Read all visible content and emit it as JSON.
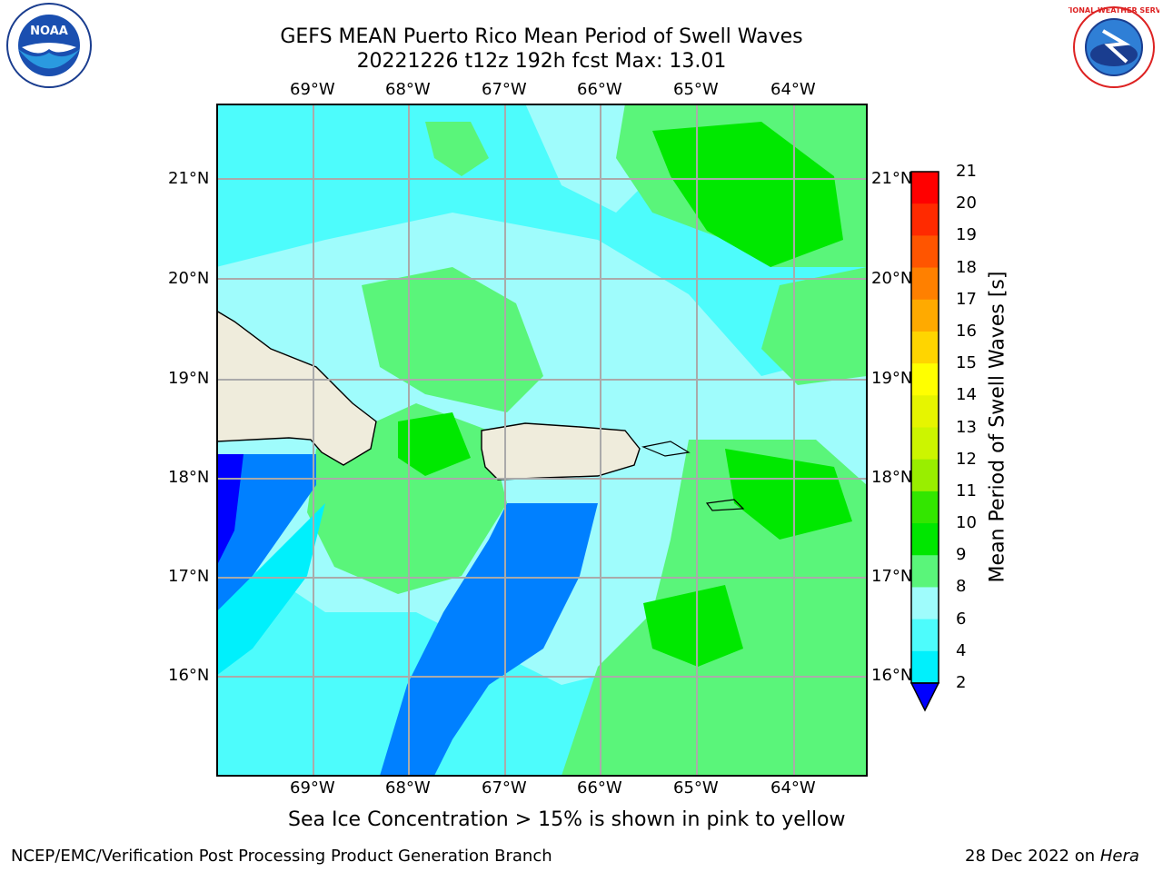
{
  "header": {
    "title": "GEFS MEAN Puerto Rico Mean Period of Swell Waves",
    "subtitle": "20221226 t12z 192h fcst   Max: 13.01"
  },
  "logos": {
    "left": "NOAA",
    "right": "NATIONAL WEATHER SERVICE"
  },
  "map": {
    "lon_labels": [
      "69°W",
      "68°W",
      "67°W",
      "66°W",
      "65°W",
      "64°W"
    ],
    "lat_labels": [
      "21°N",
      "20°N",
      "19°N",
      "18°N",
      "17°N",
      "16°N"
    ],
    "ocean_colors": {
      "cyan_light": "#9ffcfc",
      "cyan_mid": "#4dfcfc",
      "cyan": "#00f0fc",
      "blue": "#0080ff",
      "deep_blue": "#0000ff",
      "green_light": "#5af57a",
      "green": "#00e800"
    },
    "land_color": "#efecdc"
  },
  "colorbar": {
    "label": "Mean Period of Swell Waves [s]",
    "ticks": [
      "21",
      "20",
      "19",
      "18",
      "17",
      "16",
      "15",
      "14",
      "13",
      "12",
      "11",
      "10",
      "9",
      "8",
      "6",
      "4",
      "2"
    ],
    "colors": [
      "#ff0000",
      "#ff2a00",
      "#ff5500",
      "#ff8000",
      "#ffaa00",
      "#ffd500",
      "#ffff00",
      "#e6f500",
      "#ccf500",
      "#99ee00",
      "#33e600",
      "#00e600",
      "#5af57a",
      "#9ffcfc",
      "#4dfcfc",
      "#00f0fc",
      "#0080ff"
    ],
    "under_color": "#0000ff"
  },
  "footer": {
    "note": "Sea Ice Concentration > 15% is shown in pink to yellow",
    "left_credit": "NCEP/EMC/Verification Post Processing Product Generation Branch",
    "right_credit_prefix": "28 Dec 2022 on ",
    "right_credit_host": "Hera"
  }
}
